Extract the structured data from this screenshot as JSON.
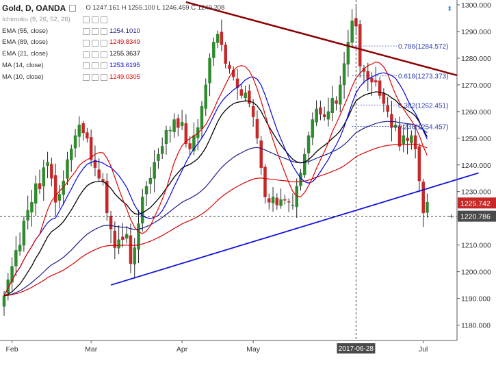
{
  "symbol": {
    "title": "Gold, D, OANDA",
    "ohlc": "O 1247.161 H 1255.100 L 1246.459 C 1249.208"
  },
  "legend": [
    {
      "name": "Ichimoku (9, 26, 52, 26)",
      "value": "",
      "color": "#999999"
    },
    {
      "name": "EMA (55, close)",
      "value": "1254.1010",
      "color": "#1a1a8c"
    },
    {
      "name": "EMA (89, close)",
      "value": "1249.8349",
      "color": "#d40000"
    },
    {
      "name": "EMA (21, close)",
      "value": "1255.3637",
      "color": "#000000"
    },
    {
      "name": "MA (14, close)",
      "value": "1253.6195",
      "color": "#0000e0"
    },
    {
      "name": "MA (10, close)",
      "value": "1249.0305",
      "color": "#e00000"
    }
  ],
  "price_labels": {
    "current": "1225.742",
    "crosshair": "1220.786",
    "crosshair_date": "2017-06-28"
  },
  "fib_levels": [
    {
      "label": "0.786(1284.572)",
      "price": 1284.572
    },
    {
      "label": "0.618(1273.373)",
      "price": 1273.373
    },
    {
      "label": "0.382(1262.451)",
      "price": 1262.451
    },
    {
      "label": "0.236(1254.457)",
      "price": 1254.457
    }
  ],
  "chart_data": {
    "type": "candlestick",
    "title": "Gold, D, OANDA",
    "y_axis_ticks": [
      1180,
      1190,
      1200,
      1210,
      1220,
      1230,
      1240,
      1250,
      1260,
      1270,
      1280,
      1290,
      1300
    ],
    "y_tick_labels": [
      "1180.000",
      "1190.000",
      "1200.000",
      "1210.000",
      "1220.000",
      "1230.000",
      "1240.000",
      "1250.000",
      "1260.000",
      "1270.000",
      "1280.000",
      "1290.000",
      "1300.000"
    ],
    "ylim": [
      1173,
      1301
    ],
    "x_axis_labels": [
      {
        "label": "Feb",
        "bar": 2
      },
      {
        "label": "Mar",
        "bar": 22
      },
      {
        "label": "Apr",
        "bar": 45
      },
      {
        "label": "May",
        "bar": 63
      },
      {
        "label": "2017-06-28",
        "bar": 89
      },
      {
        "label": "Jul",
        "bar": 106
      }
    ],
    "candles_close": [
      1191,
      1197,
      1202,
      1208,
      1210,
      1219,
      1223,
      1226,
      1233,
      1231,
      1239,
      1241,
      1235,
      1226,
      1229,
      1234,
      1242,
      1246,
      1251,
      1255,
      1252,
      1250,
      1242,
      1239,
      1235,
      1234,
      1222,
      1216,
      1209,
      1212,
      1212,
      1214,
      1203,
      1209,
      1218,
      1228,
      1232,
      1235,
      1241,
      1244,
      1247,
      1253,
      1253,
      1257,
      1254,
      1256,
      1248,
      1246,
      1251,
      1254,
      1262,
      1270,
      1280,
      1286,
      1289,
      1285,
      1278,
      1276,
      1273,
      1269,
      1266,
      1267,
      1263,
      1258,
      1250,
      1239,
      1228,
      1226,
      1228,
      1225,
      1227,
      1227,
      1226,
      1225,
      1232,
      1237,
      1244,
      1251,
      1257,
      1261,
      1259,
      1258,
      1260,
      1265,
      1263,
      1270,
      1278,
      1286,
      1294,
      1292,
      1277,
      1275,
      1272,
      1271,
      1271,
      1266,
      1263,
      1260,
      1254,
      1255,
      1247,
      1251,
      1249,
      1251,
      1246,
      1234,
      1222,
      1226
    ],
    "trendlines": [
      {
        "name": "resistance",
        "color": "#8b0000",
        "points": [
          [
            46,
            1301
          ],
          [
            121,
            1271
          ]
        ]
      },
      {
        "name": "support",
        "color": "#1010e0",
        "points": [
          [
            27,
            1195
          ],
          [
            120,
            1237
          ]
        ]
      }
    ]
  }
}
